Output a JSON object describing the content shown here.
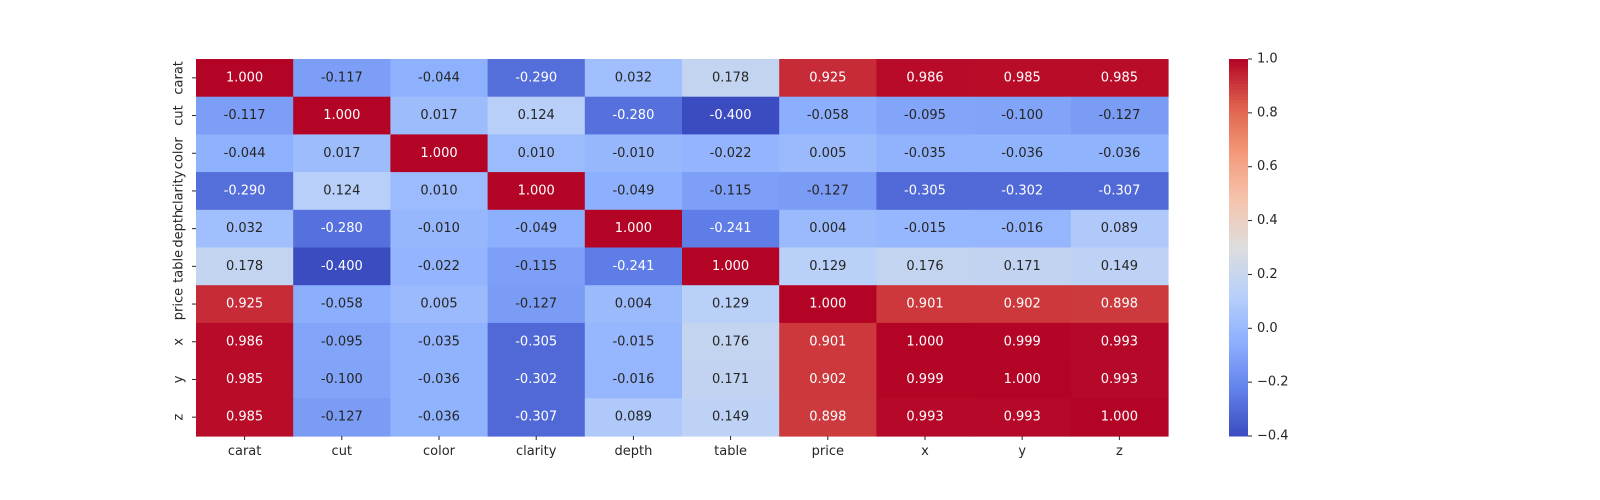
{
  "chart_data": {
    "type": "heatmap",
    "x_labels": [
      "carat",
      "cut",
      "color",
      "clarity",
      "depth",
      "table",
      "price",
      "x",
      "y",
      "z"
    ],
    "y_labels": [
      "carat",
      "cut",
      "color",
      "clarity",
      "depth",
      "table",
      "price",
      "x",
      "y",
      "z"
    ],
    "values": [
      [
        1.0,
        -0.117,
        -0.044,
        -0.29,
        0.032,
        0.178,
        0.925,
        0.986,
        0.985,
        0.985
      ],
      [
        -0.117,
        1.0,
        0.017,
        0.124,
        -0.28,
        -0.4,
        -0.058,
        -0.095,
        -0.1,
        -0.127
      ],
      [
        -0.044,
        0.017,
        1.0,
        0.01,
        -0.01,
        -0.022,
        0.005,
        -0.035,
        -0.036,
        -0.036
      ],
      [
        -0.29,
        0.124,
        0.01,
        1.0,
        -0.049,
        -0.115,
        -0.127,
        -0.305,
        -0.302,
        -0.307
      ],
      [
        0.032,
        -0.28,
        -0.01,
        -0.049,
        1.0,
        -0.241,
        0.004,
        -0.015,
        -0.016,
        0.089
      ],
      [
        0.178,
        -0.4,
        -0.022,
        -0.115,
        -0.241,
        1.0,
        0.129,
        0.176,
        0.171,
        0.149
      ],
      [
        0.925,
        -0.058,
        0.005,
        -0.127,
        0.004,
        0.129,
        1.0,
        0.901,
        0.902,
        0.898
      ],
      [
        0.986,
        -0.095,
        -0.035,
        -0.305,
        -0.015,
        0.176,
        0.901,
        1.0,
        0.999,
        0.993
      ],
      [
        0.985,
        -0.1,
        -0.036,
        -0.302,
        -0.016,
        0.171,
        0.902,
        0.999,
        1.0,
        0.993
      ],
      [
        0.985,
        -0.127,
        -0.036,
        -0.307,
        0.089,
        0.149,
        0.898,
        0.993,
        0.993,
        1.0
      ]
    ],
    "value_format": "3 decimals",
    "colormap": "coolwarm",
    "vmin": -0.4,
    "vmax": 1.0,
    "colorbar_ticks": [
      "−0.4",
      "−0.2",
      "0.0",
      "0.2",
      "0.4",
      "0.6",
      "0.8",
      "1.0"
    ],
    "colorbar_tick_values": [
      -0.4,
      -0.2,
      0.0,
      0.2,
      0.4,
      0.6,
      0.8,
      1.0
    ],
    "title": "",
    "xlabel": "",
    "ylabel": ""
  }
}
